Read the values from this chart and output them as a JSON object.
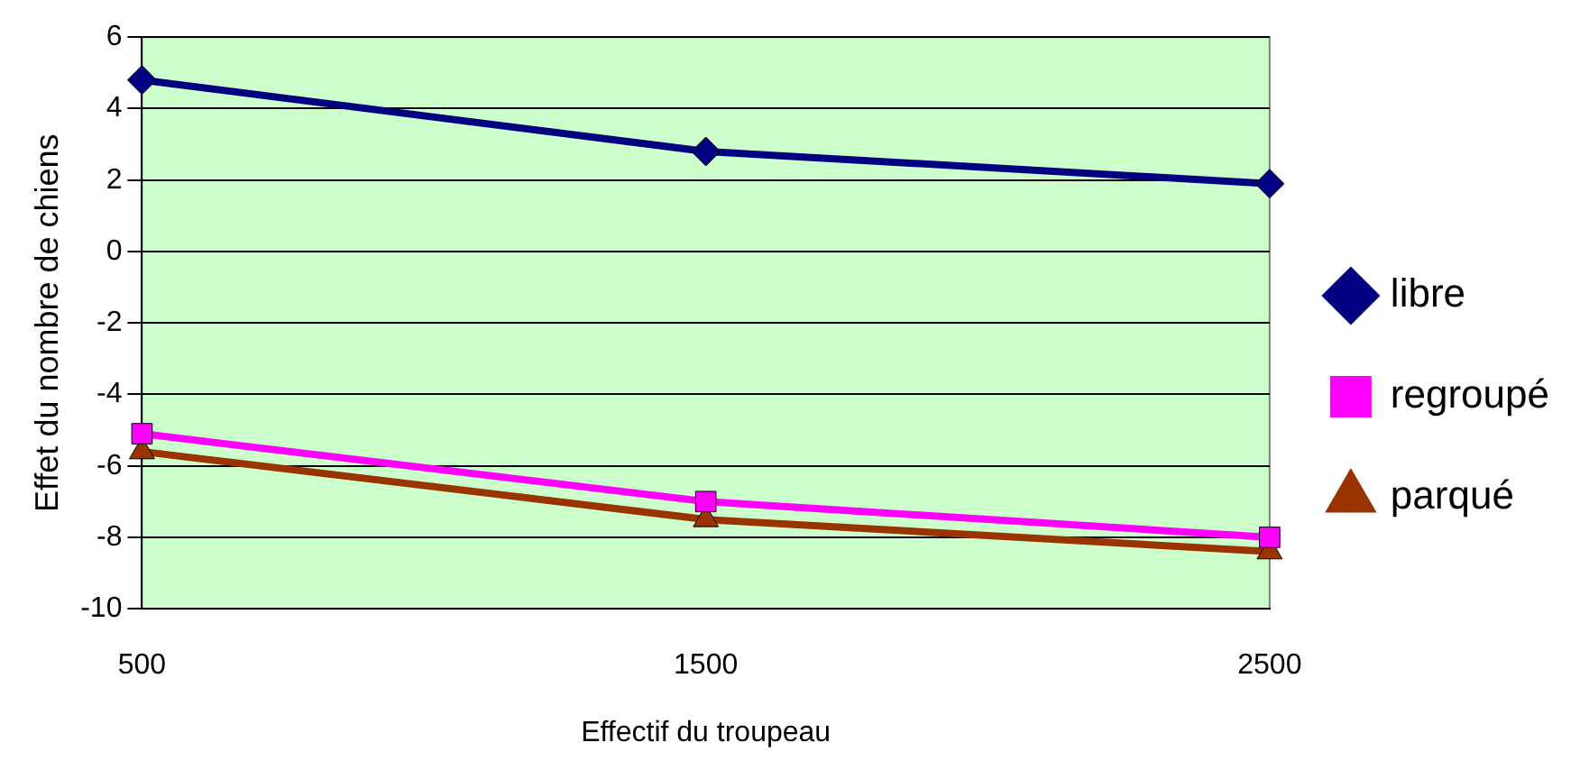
{
  "chart_data": {
    "type": "line",
    "xlabel": "Effectif du troupeau",
    "ylabel": "Effet du nombre de chiens",
    "categories": [
      "500",
      "1500",
      "2500"
    ],
    "series": [
      {
        "name": "libre",
        "color": "#000080",
        "marker": "diamond",
        "values": [
          4.8,
          2.8,
          1.9
        ]
      },
      {
        "name": "regroupé",
        "color": "#ff00ff",
        "marker": "square",
        "values": [
          -5.1,
          -7.0,
          -8.0
        ]
      },
      {
        "name": "parqué",
        "color": "#993300",
        "marker": "triangle",
        "values": [
          -5.6,
          -7.5,
          -8.4
        ]
      }
    ],
    "ylim": [
      -10,
      6
    ],
    "yticks": [
      -10,
      -8,
      -6,
      -4,
      -2,
      0,
      2,
      4,
      6
    ],
    "grid": "y",
    "legend": "right",
    "line_style": "solid"
  }
}
